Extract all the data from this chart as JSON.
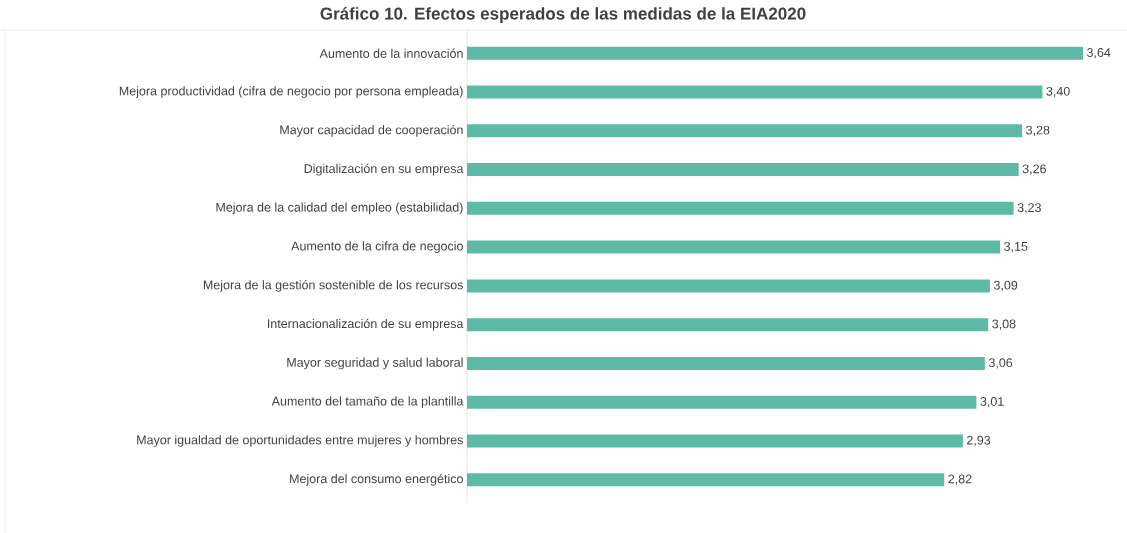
{
  "chart_data": {
    "type": "bar",
    "orientation": "horizontal",
    "title": "Gráfico 10. Efectos esperados de las medidas de la EIA2020",
    "categories": [
      "Aumento de la innovación",
      "Mejora productividad (cifra de negocio por persona empleada)",
      "Mayor capacidad de cooperación",
      "Digitalización en su empresa",
      "Mejora de la calidad del empleo (estabilidad)",
      "Aumento de la cifra de negocio",
      "Mejora de la gestión sostenible de los recursos",
      "Internacionalización de su empresa",
      "Mayor seguridad y salud laboral",
      "Aumento del tamaño de la plantilla",
      "Mayor igualdad de oportunidades entre mujeres y hombres",
      "Mejora del consumo energético"
    ],
    "values": [
      3.64,
      3.4,
      3.28,
      3.26,
      3.23,
      3.15,
      3.09,
      3.08,
      3.06,
      3.01,
      2.93,
      2.82
    ],
    "value_labels": [
      "3,64",
      "3,40",
      "3,28",
      "3,26",
      "3,23",
      "3,15",
      "3,09",
      "3,08",
      "3,06",
      "3,01",
      "2,93",
      "2,82"
    ],
    "color": "#5cbaa5",
    "xlim": [
      0,
      3.9
    ],
    "tick_labels": "y"
  }
}
